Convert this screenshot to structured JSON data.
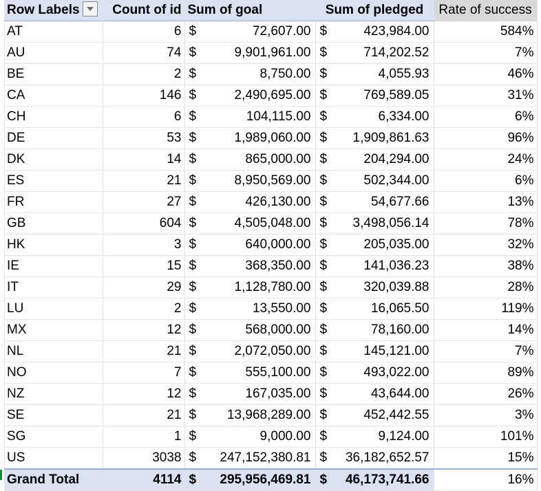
{
  "header": {
    "row_labels": "Row Labels",
    "count": "Count of id",
    "goal": "Sum of goal",
    "pledged": "Sum of pledged",
    "rate": "Rate of success"
  },
  "currency_symbol": "$",
  "rows": [
    {
      "label": "AT",
      "count": "6",
      "goal": "72,607.00",
      "pledged": "423,984.00",
      "rate": "584%"
    },
    {
      "label": "AU",
      "count": "74",
      "goal": "9,901,961.00",
      "pledged": "714,202.52",
      "rate": "7%"
    },
    {
      "label": "BE",
      "count": "2",
      "goal": "8,750.00",
      "pledged": "4,055.93",
      "rate": "46%"
    },
    {
      "label": "CA",
      "count": "146",
      "goal": "2,490,695.00",
      "pledged": "769,589.05",
      "rate": "31%"
    },
    {
      "label": "CH",
      "count": "6",
      "goal": "104,115.00",
      "pledged": "6,334.00",
      "rate": "6%"
    },
    {
      "label": "DE",
      "count": "53",
      "goal": "1,989,060.00",
      "pledged": "1,909,861.63",
      "rate": "96%"
    },
    {
      "label": "DK",
      "count": "14",
      "goal": "865,000.00",
      "pledged": "204,294.00",
      "rate": "24%"
    },
    {
      "label": "ES",
      "count": "21",
      "goal": "8,950,569.00",
      "pledged": "502,344.00",
      "rate": "6%"
    },
    {
      "label": "FR",
      "count": "27",
      "goal": "426,130.00",
      "pledged": "54,677.66",
      "rate": "13%"
    },
    {
      "label": "GB",
      "count": "604",
      "goal": "4,505,048.00",
      "pledged": "3,498,056.14",
      "rate": "78%"
    },
    {
      "label": "HK",
      "count": "3",
      "goal": "640,000.00",
      "pledged": "205,035.00",
      "rate": "32%"
    },
    {
      "label": "IE",
      "count": "15",
      "goal": "368,350.00",
      "pledged": "141,036.23",
      "rate": "38%"
    },
    {
      "label": "IT",
      "count": "29",
      "goal": "1,128,780.00",
      "pledged": "320,039.88",
      "rate": "28%"
    },
    {
      "label": "LU",
      "count": "2",
      "goal": "13,550.00",
      "pledged": "16,065.50",
      "rate": "119%"
    },
    {
      "label": "MX",
      "count": "12",
      "goal": "568,000.00",
      "pledged": "78,160.00",
      "rate": "14%"
    },
    {
      "label": "NL",
      "count": "21",
      "goal": "2,072,050.00",
      "pledged": "145,121.00",
      "rate": "7%"
    },
    {
      "label": "NO",
      "count": "7",
      "goal": "555,100.00",
      "pledged": "493,022.00",
      "rate": "89%"
    },
    {
      "label": "NZ",
      "count": "12",
      "goal": "167,035.00",
      "pledged": "43,644.00",
      "rate": "26%"
    },
    {
      "label": "SE",
      "count": "21",
      "goal": "13,968,289.00",
      "pledged": "452,442.55",
      "rate": "3%"
    },
    {
      "label": "SG",
      "count": "1",
      "goal": "9,000.00",
      "pledged": "9,124.00",
      "rate": "101%"
    },
    {
      "label": "US",
      "count": "3038",
      "goal": "247,152,380.81",
      "pledged": "36,182,652.57",
      "rate": "15%"
    }
  ],
  "total": {
    "label": "Grand Total",
    "count": "4114",
    "goal": "295,956,469.81",
    "pledged": "46,173,741.66",
    "rate": "16%"
  }
}
